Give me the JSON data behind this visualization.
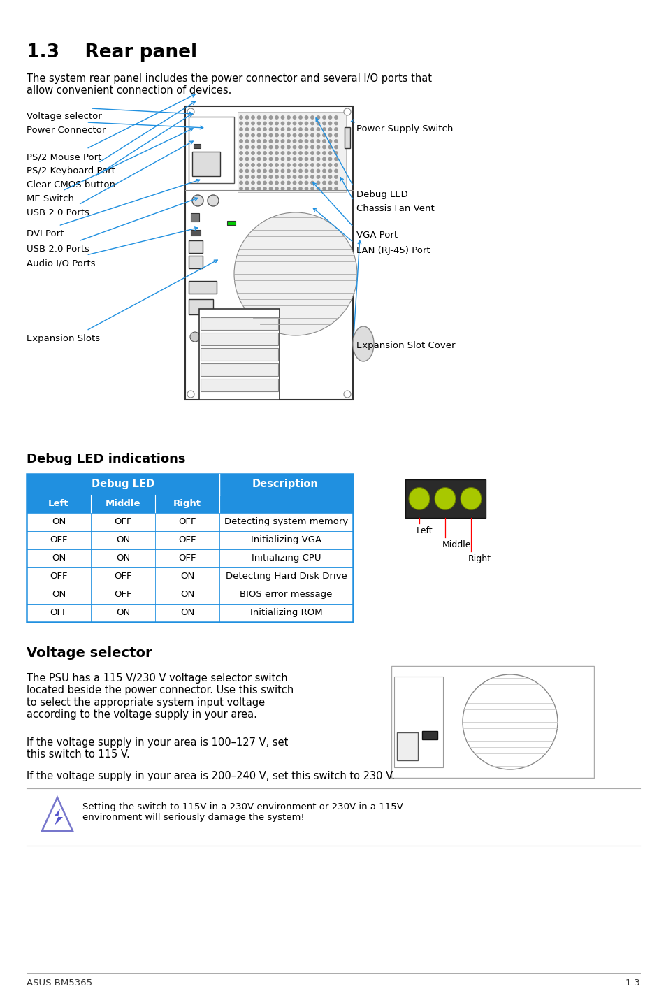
{
  "title": "1.3    Rear panel",
  "subtitle": "The system rear panel includes the power connector and several I/O ports that\nallow convenient connection of devices.",
  "debug_section_title": "Debug LED indications",
  "voltage_section_title": "Voltage selector",
  "voltage_text1": "The PSU has a 115 V/230 V voltage selector switch\nlocated beside the power connector. Use this switch\nto select the appropriate system input voltage\naccording to the voltage supply in your area.",
  "voltage_text2": "If the voltage supply in your area is 100–127 V, set\nthis switch to 115 V.",
  "voltage_text3": "If the voltage supply in your area is 200–240 V, set this switch to 230 V.",
  "warning_text": "Setting the switch to 115V in a 230V environment or 230V in a 115V\nenvironment will seriously damage the system!",
  "footer_left": "ASUS BM5365",
  "footer_right": "1-3",
  "table_header_bg": "#2090e0",
  "table_border": "#2090e0",
  "table_rows": [
    [
      "ON",
      "OFF",
      "OFF",
      "Detecting system memory"
    ],
    [
      "OFF",
      "ON",
      "OFF",
      "Initializing VGA"
    ],
    [
      "ON",
      "ON",
      "OFF",
      "Initializing CPU"
    ],
    [
      "OFF",
      "OFF",
      "ON",
      "Detecting Hard Disk Drive"
    ],
    [
      "ON",
      "OFF",
      "ON",
      "BIOS error message"
    ],
    [
      "OFF",
      "ON",
      "ON",
      "Initializing ROM"
    ]
  ],
  "bg_color": "#ffffff",
  "arrow_color": "#2090e0",
  "led_on_color": "#a8c800",
  "led_off_color": "#555500",
  "led_bg_color": "#2a2a2a"
}
